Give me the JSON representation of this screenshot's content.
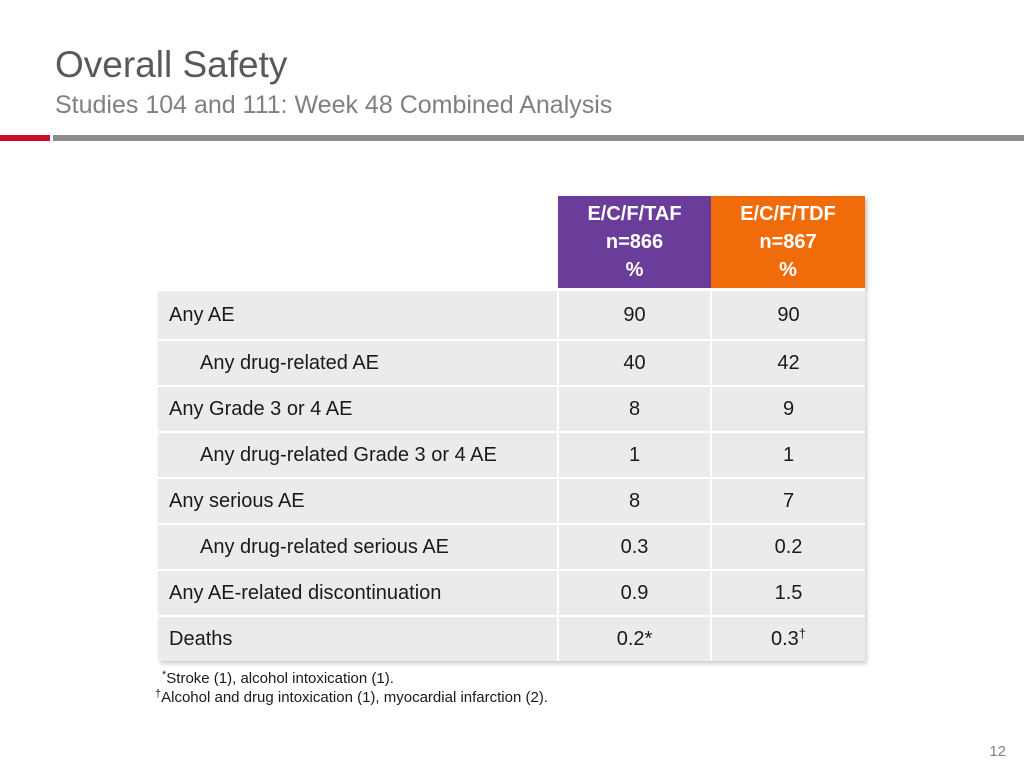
{
  "header": {
    "title": "Overall Safety",
    "subtitle": "Studies 104 and 111: Week 48 Combined Analysis"
  },
  "colors": {
    "accent_red": "#c8102e",
    "rule_gray": "#8c8c8c",
    "taf_purple": "#6a3d9a",
    "tdf_orange": "#f06b0a",
    "row_bg": "#ebebeb"
  },
  "table": {
    "columns": [
      {
        "line1": "E/C/F/TAF",
        "line2": "n=866",
        "line3": "%"
      },
      {
        "line1": "E/C/F/TDF",
        "line2": "n=867",
        "line3": "%"
      }
    ],
    "rows": [
      {
        "label": "Any AE",
        "taf": "90",
        "tdf": "90"
      },
      {
        "label": "Any drug-related AE",
        "taf": "40",
        "tdf": "42"
      },
      {
        "label": "Any Grade 3 or 4 AE",
        "taf": "8",
        "tdf": "9"
      },
      {
        "label": "Any drug-related Grade 3 or 4 AE",
        "taf": "1",
        "tdf": "1"
      },
      {
        "label": "Any serious AE",
        "taf": "8",
        "tdf": "7"
      },
      {
        "label": "Any drug-related serious AE",
        "taf": "0.3",
        "tdf": "0.2"
      },
      {
        "label": "Any AE-related discontinuation",
        "taf": "0.9",
        "tdf": "1.5"
      },
      {
        "label": "Deaths",
        "taf": "0.2*",
        "tdf": "0.3",
        "tdf_mark": "†"
      }
    ]
  },
  "footnotes": [
    {
      "mark": "*",
      "text": "Stroke (1), alcohol intoxication (1)."
    },
    {
      "mark": "†",
      "text": "Alcohol and drug intoxication (1), myocardial infarction (2)."
    }
  ],
  "page_number": "12"
}
